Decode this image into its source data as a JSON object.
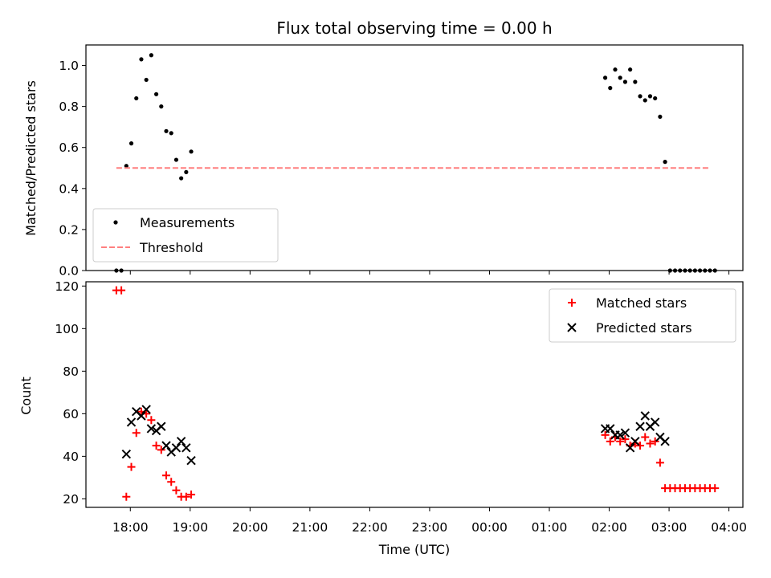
{
  "chart_data": [
    {
      "type": "scatter",
      "title": "Flux total observing time = 0.00 h",
      "xlabel": "",
      "ylabel": "Matched/Predicted stars",
      "ylim": [
        0,
        1.1
      ],
      "yticks": [
        "0.0",
        "0.2",
        "0.4",
        "0.6",
        "0.8",
        "1.0"
      ],
      "legend": {
        "placement": "lower-left",
        "entries": [
          "Measurements",
          "Threshold"
        ]
      },
      "series": [
        {
          "name": "Measurements",
          "marker": "dot",
          "color": "#000000",
          "points": [
            [
              "17:46",
              0.0
            ],
            [
              "17:51",
              0.0
            ],
            [
              "17:56",
              0.51
            ],
            [
              "18:01",
              0.62
            ],
            [
              "18:06",
              0.84
            ],
            [
              "18:11",
              1.03
            ],
            [
              "18:16",
              0.93
            ],
            [
              "18:21",
              1.05
            ],
            [
              "18:26",
              0.86
            ],
            [
              "18:31",
              0.8
            ],
            [
              "18:36",
              0.68
            ],
            [
              "18:41",
              0.67
            ],
            [
              "18:46",
              0.54
            ],
            [
              "18:51",
              0.45
            ],
            [
              "18:56",
              0.48
            ],
            [
              "19:01",
              0.58
            ],
            [
              "01:56",
              0.94
            ],
            [
              "02:01",
              0.89
            ],
            [
              "02:06",
              0.98
            ],
            [
              "02:11",
              0.94
            ],
            [
              "02:16",
              0.92
            ],
            [
              "02:21",
              0.98
            ],
            [
              "02:26",
              0.92
            ],
            [
              "02:31",
              0.85
            ],
            [
              "02:36",
              0.83
            ],
            [
              "02:41",
              0.85
            ],
            [
              "02:46",
              0.84
            ],
            [
              "02:51",
              0.75
            ],
            [
              "02:56",
              0.53
            ],
            [
              "03:01",
              0.0
            ],
            [
              "03:06",
              0.0
            ],
            [
              "03:11",
              0.0
            ],
            [
              "03:16",
              0.0
            ],
            [
              "03:21",
              0.0
            ],
            [
              "03:26",
              0.0
            ],
            [
              "03:31",
              0.0
            ],
            [
              "03:36",
              0.0
            ],
            [
              "03:41",
              0.0
            ],
            [
              "03:46",
              0.0
            ]
          ]
        },
        {
          "name": "Threshold",
          "line": "dashed",
          "color": "#ff7f7f",
          "points": [
            [
              "17:46",
              0.5
            ],
            [
              "03:41",
              0.5
            ]
          ]
        }
      ]
    },
    {
      "type": "scatter",
      "title": "",
      "xlabel": "Time (UTC)",
      "ylabel": "Count",
      "ylim": [
        16,
        122
      ],
      "yticks": [
        "20",
        "40",
        "60",
        "80",
        "100",
        "120"
      ],
      "xticks": [
        "18:00",
        "19:00",
        "20:00",
        "21:00",
        "22:00",
        "23:00",
        "00:00",
        "01:00",
        "02:00",
        "03:00",
        "04:00"
      ],
      "legend": {
        "placement": "upper-right",
        "entries": [
          "Matched stars",
          "Predicted stars"
        ]
      },
      "series": [
        {
          "name": "Matched stars",
          "marker": "plus",
          "color": "#ff0000",
          "points": [
            [
              "17:46",
              118
            ],
            [
              "17:51",
              118
            ],
            [
              "17:56",
              21
            ],
            [
              "18:01",
              35
            ],
            [
              "18:06",
              51
            ],
            [
              "18:11",
              61
            ],
            [
              "18:16",
              60
            ],
            [
              "18:21",
              57
            ],
            [
              "18:26",
              45
            ],
            [
              "18:31",
              43
            ],
            [
              "18:36",
              31
            ],
            [
              "18:41",
              28
            ],
            [
              "18:46",
              24
            ],
            [
              "18:51",
              21
            ],
            [
              "18:56",
              21
            ],
            [
              "19:01",
              22
            ],
            [
              "01:56",
              50
            ],
            [
              "02:01",
              47
            ],
            [
              "02:06",
              49
            ],
            [
              "02:11",
              47
            ],
            [
              "02:16",
              48
            ],
            [
              "02:21",
              45
            ],
            [
              "02:26",
              46
            ],
            [
              "02:31",
              45
            ],
            [
              "02:36",
              49
            ],
            [
              "02:41",
              46
            ],
            [
              "02:46",
              47
            ],
            [
              "02:51",
              37
            ],
            [
              "02:56",
              25
            ],
            [
              "03:01",
              25
            ],
            [
              "03:06",
              25
            ],
            [
              "03:11",
              25
            ],
            [
              "03:16",
              25
            ],
            [
              "03:21",
              25
            ],
            [
              "03:26",
              25
            ],
            [
              "03:31",
              25
            ],
            [
              "03:36",
              25
            ],
            [
              "03:41",
              25
            ],
            [
              "03:46",
              25
            ]
          ]
        },
        {
          "name": "Predicted stars",
          "marker": "x",
          "color": "#000000",
          "points": [
            [
              "17:56",
              41
            ],
            [
              "18:01",
              56
            ],
            [
              "18:06",
              61
            ],
            [
              "18:11",
              59
            ],
            [
              "18:16",
              62
            ],
            [
              "18:21",
              53
            ],
            [
              "18:26",
              52
            ],
            [
              "18:31",
              54
            ],
            [
              "18:36",
              45
            ],
            [
              "18:41",
              42
            ],
            [
              "18:46",
              44
            ],
            [
              "18:51",
              47
            ],
            [
              "18:56",
              44
            ],
            [
              "19:01",
              38
            ],
            [
              "01:56",
              53
            ],
            [
              "02:01",
              53
            ],
            [
              "02:06",
              50
            ],
            [
              "02:11",
              50
            ],
            [
              "02:16",
              51
            ],
            [
              "02:21",
              44
            ],
            [
              "02:26",
              47
            ],
            [
              "02:31",
              54
            ],
            [
              "02:36",
              59
            ],
            [
              "02:41",
              54
            ],
            [
              "02:46",
              56
            ],
            [
              "02:51",
              49
            ],
            [
              "02:56",
              47
            ]
          ]
        }
      ]
    }
  ]
}
